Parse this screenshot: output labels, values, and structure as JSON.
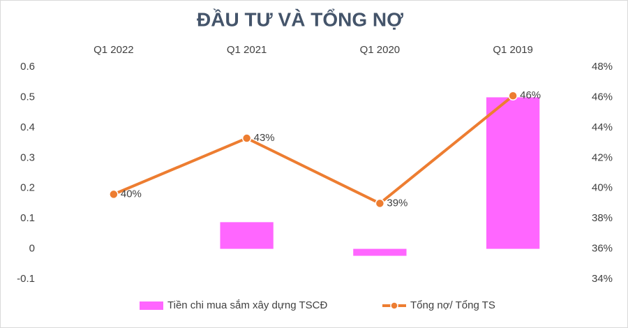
{
  "chart_data": {
    "type": "combo",
    "title": "ĐẦU TƯ VÀ TỔNG NỢ",
    "categories": [
      "Q1 2022",
      "Q1 2021",
      "Q1 2020",
      "Q1 2019"
    ],
    "series": [
      {
        "name": "Tiền chi mua sắm xây dựng TSCĐ",
        "type": "bar",
        "color": "#ff66ff",
        "values": [
          0,
          0.088,
          -0.023,
          0.5
        ]
      },
      {
        "name": "Tổng nợ/ Tổng TS",
        "type": "line",
        "axis": "y2",
        "color": "#ed7d31",
        "values": [
          39.6,
          43.3,
          39.0,
          46.1
        ],
        "value_labels": [
          "40%",
          "43%",
          "39%",
          "46%"
        ]
      }
    ],
    "ylim": [
      -0.1,
      0.6
    ],
    "yticks": [
      -0.1,
      0,
      0.1,
      0.2,
      0.3,
      0.4,
      0.5,
      0.6
    ],
    "y2lim": [
      34,
      48
    ],
    "y2ticks": [
      {
        "value": 34,
        "label": "34%"
      },
      {
        "value": 36,
        "label": "36%"
      },
      {
        "value": 38,
        "label": "38%"
      },
      {
        "value": 40,
        "label": "40%"
      },
      {
        "value": 42,
        "label": "42%"
      },
      {
        "value": 44,
        "label": "44%"
      },
      {
        "value": 46,
        "label": "46%"
      },
      {
        "value": 48,
        "label": "48%"
      }
    ],
    "grid": false,
    "legend": "bottom"
  }
}
